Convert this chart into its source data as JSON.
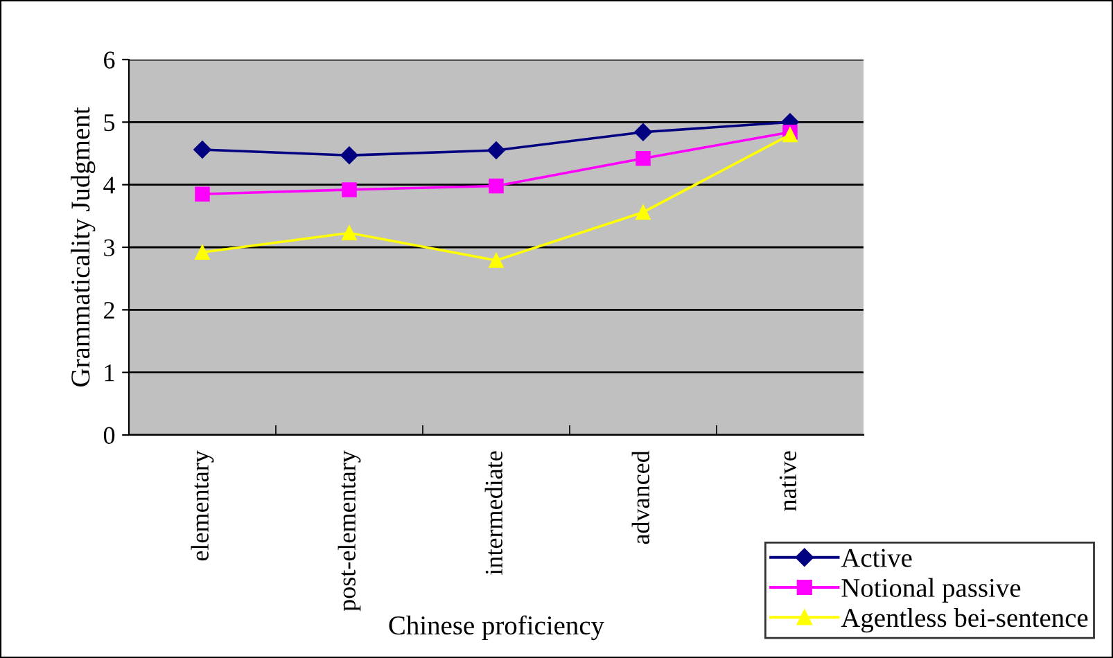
{
  "chart_data": {
    "type": "line",
    "xlabel": "Chinese proficiency",
    "ylabel": "Grammaticality Judgment",
    "categories": [
      "elementary",
      "post-elementary",
      "intermediate",
      "advanced",
      "native"
    ],
    "series": [
      {
        "name": "Active",
        "color": "#000080",
        "marker": "diamond",
        "values": [
          4.56,
          4.47,
          4.55,
          4.84,
          5.0
        ]
      },
      {
        "name": "Notional passive",
        "color": "#ff00ff",
        "marker": "square",
        "values": [
          3.85,
          3.92,
          3.98,
          4.42,
          4.84
        ]
      },
      {
        "name": "Agentless bei-sentence",
        "color": "#ffff00",
        "marker": "triangle",
        "values": [
          2.92,
          3.23,
          2.79,
          3.56,
          4.8
        ]
      }
    ],
    "ylim": [
      0,
      6
    ],
    "yticks": [
      0,
      1,
      2,
      3,
      4,
      5,
      6
    ],
    "grid": "y",
    "legend": "bottom right"
  }
}
